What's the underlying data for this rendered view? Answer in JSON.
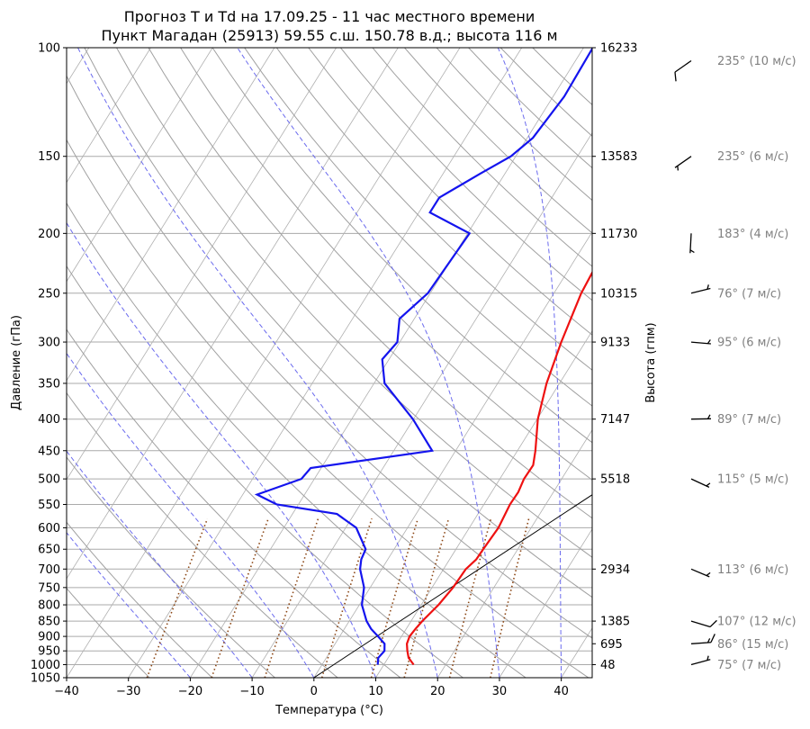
{
  "title_line1": "Прогноз T и Td на 17.09.25 - 11 час местного времени",
  "title_line2": "Пункт Магадан (25913) 59.55 с.ш. 150.78 в.д.; высота 116 м",
  "chart_data": {
    "type": "skew-t",
    "xlabel": "Температура (°C)",
    "ylabel": "Давление (гПа)",
    "ylabel_right": "Высота (гпм)",
    "xlim": [
      -40,
      45
    ],
    "ylim": [
      1050,
      100
    ],
    "y_scale": "log",
    "x_ticks": [
      -40,
      -30,
      -20,
      -10,
      0,
      10,
      20,
      30,
      40
    ],
    "y_ticks": [
      100,
      150,
      200,
      250,
      300,
      350,
      400,
      450,
      500,
      550,
      600,
      650,
      700,
      750,
      800,
      850,
      900,
      950,
      1000,
      1050
    ],
    "height_labels": [
      {
        "p": 100,
        "h": "16233"
      },
      {
        "p": 150,
        "h": "13583"
      },
      {
        "p": 200,
        "h": "11730"
      },
      {
        "p": 250,
        "h": "10315"
      },
      {
        "p": 300,
        "h": "9133"
      },
      {
        "p": 400,
        "h": "7147"
      },
      {
        "p": 500,
        "h": "5518"
      },
      {
        "p": 700,
        "h": "2934"
      },
      {
        "p": 850,
        "h": "1385"
      },
      {
        "p": 925,
        "h": "695"
      },
      {
        "p": 1000,
        "h": "48"
      }
    ],
    "series": [
      {
        "color": "#ee1111",
        "points": [
          [
            1000,
            14.8
          ],
          [
            975,
            13.3
          ],
          [
            950,
            12.4
          ],
          [
            925,
            11.6
          ],
          [
            900,
            11.3
          ],
          [
            875,
            11.5
          ],
          [
            850,
            11.8
          ],
          [
            800,
            12.8
          ],
          [
            750,
            13.4
          ],
          [
            700,
            13.6
          ],
          [
            675,
            14.3
          ],
          [
            650,
            14.4
          ],
          [
            600,
            14.7
          ],
          [
            550,
            14.2
          ],
          [
            525,
            14.3
          ],
          [
            500,
            13.9
          ],
          [
            475,
            14.0
          ],
          [
            450,
            12.9
          ],
          [
            400,
            10.1
          ],
          [
            350,
            7.9
          ],
          [
            300,
            6.1
          ],
          [
            250,
            4.4
          ],
          [
            225,
            4.0
          ],
          [
            212,
            4.3
          ],
          [
            200,
            5.3
          ],
          [
            180,
            10.4
          ],
          [
            170,
            14.1
          ],
          [
            160,
            16.6
          ],
          [
            150,
            17.5
          ],
          [
            140,
            18.9
          ],
          [
            125,
            21.4
          ],
          [
            110,
            24.6
          ],
          [
            100,
            27.5
          ]
        ]
      },
      {
        "color": "#1414ee",
        "points": [
          [
            1000,
            9.0
          ],
          [
            975,
            8.4
          ],
          [
            950,
            8.7
          ],
          [
            925,
            8.0
          ],
          [
            900,
            6.2
          ],
          [
            875,
            4.3
          ],
          [
            850,
            2.8
          ],
          [
            800,
            0.4
          ],
          [
            750,
            -1.0
          ],
          [
            700,
            -3.5
          ],
          [
            675,
            -4.3
          ],
          [
            650,
            -4.6
          ],
          [
            600,
            -8.3
          ],
          [
            570,
            -12.8
          ],
          [
            550,
            -23.5
          ],
          [
            530,
            -27.7
          ],
          [
            500,
            -22.1
          ],
          [
            480,
            -21.7
          ],
          [
            450,
            -3.8
          ],
          [
            400,
            -10.1
          ],
          [
            350,
            -18.3
          ],
          [
            320,
            -21.1
          ],
          [
            300,
            -20.4
          ],
          [
            275,
            -22.4
          ],
          [
            250,
            -20.4
          ],
          [
            212,
            -19.9
          ],
          [
            200,
            -19.7
          ],
          [
            185,
            -28.2
          ],
          [
            175,
            -28.2
          ],
          [
            160,
            -24.0
          ],
          [
            150,
            -20.8
          ],
          [
            140,
            -19.1
          ],
          [
            120,
            -18.2
          ],
          [
            100,
            -18.5
          ]
        ]
      }
    ],
    "winds": [
      {
        "p": 105,
        "label": "235° (10 м/с)"
      },
      {
        "p": 150,
        "label": "235° (6 м/с)"
      },
      {
        "p": 200,
        "label": "183° (4 м/с)"
      },
      {
        "p": 250,
        "label": "76° (7 м/с)"
      },
      {
        "p": 300,
        "label": "95° (6 м/с)"
      },
      {
        "p": 400,
        "label": "89° (7 м/с)"
      },
      {
        "p": 500,
        "label": "115° (5 м/с)"
      },
      {
        "p": 700,
        "label": "113° (6 м/с)"
      },
      {
        "p": 850,
        "label": "107° (12 м/с)"
      },
      {
        "p": 925,
        "label": "86° (15 м/с)"
      },
      {
        "p": 1000,
        "label": "75° (7 м/с)"
      }
    ],
    "reference_line": {
      "color": "#000000",
      "points": [
        [
          1050,
          0
        ],
        [
          375,
          40
        ]
      ]
    },
    "grid": true
  }
}
